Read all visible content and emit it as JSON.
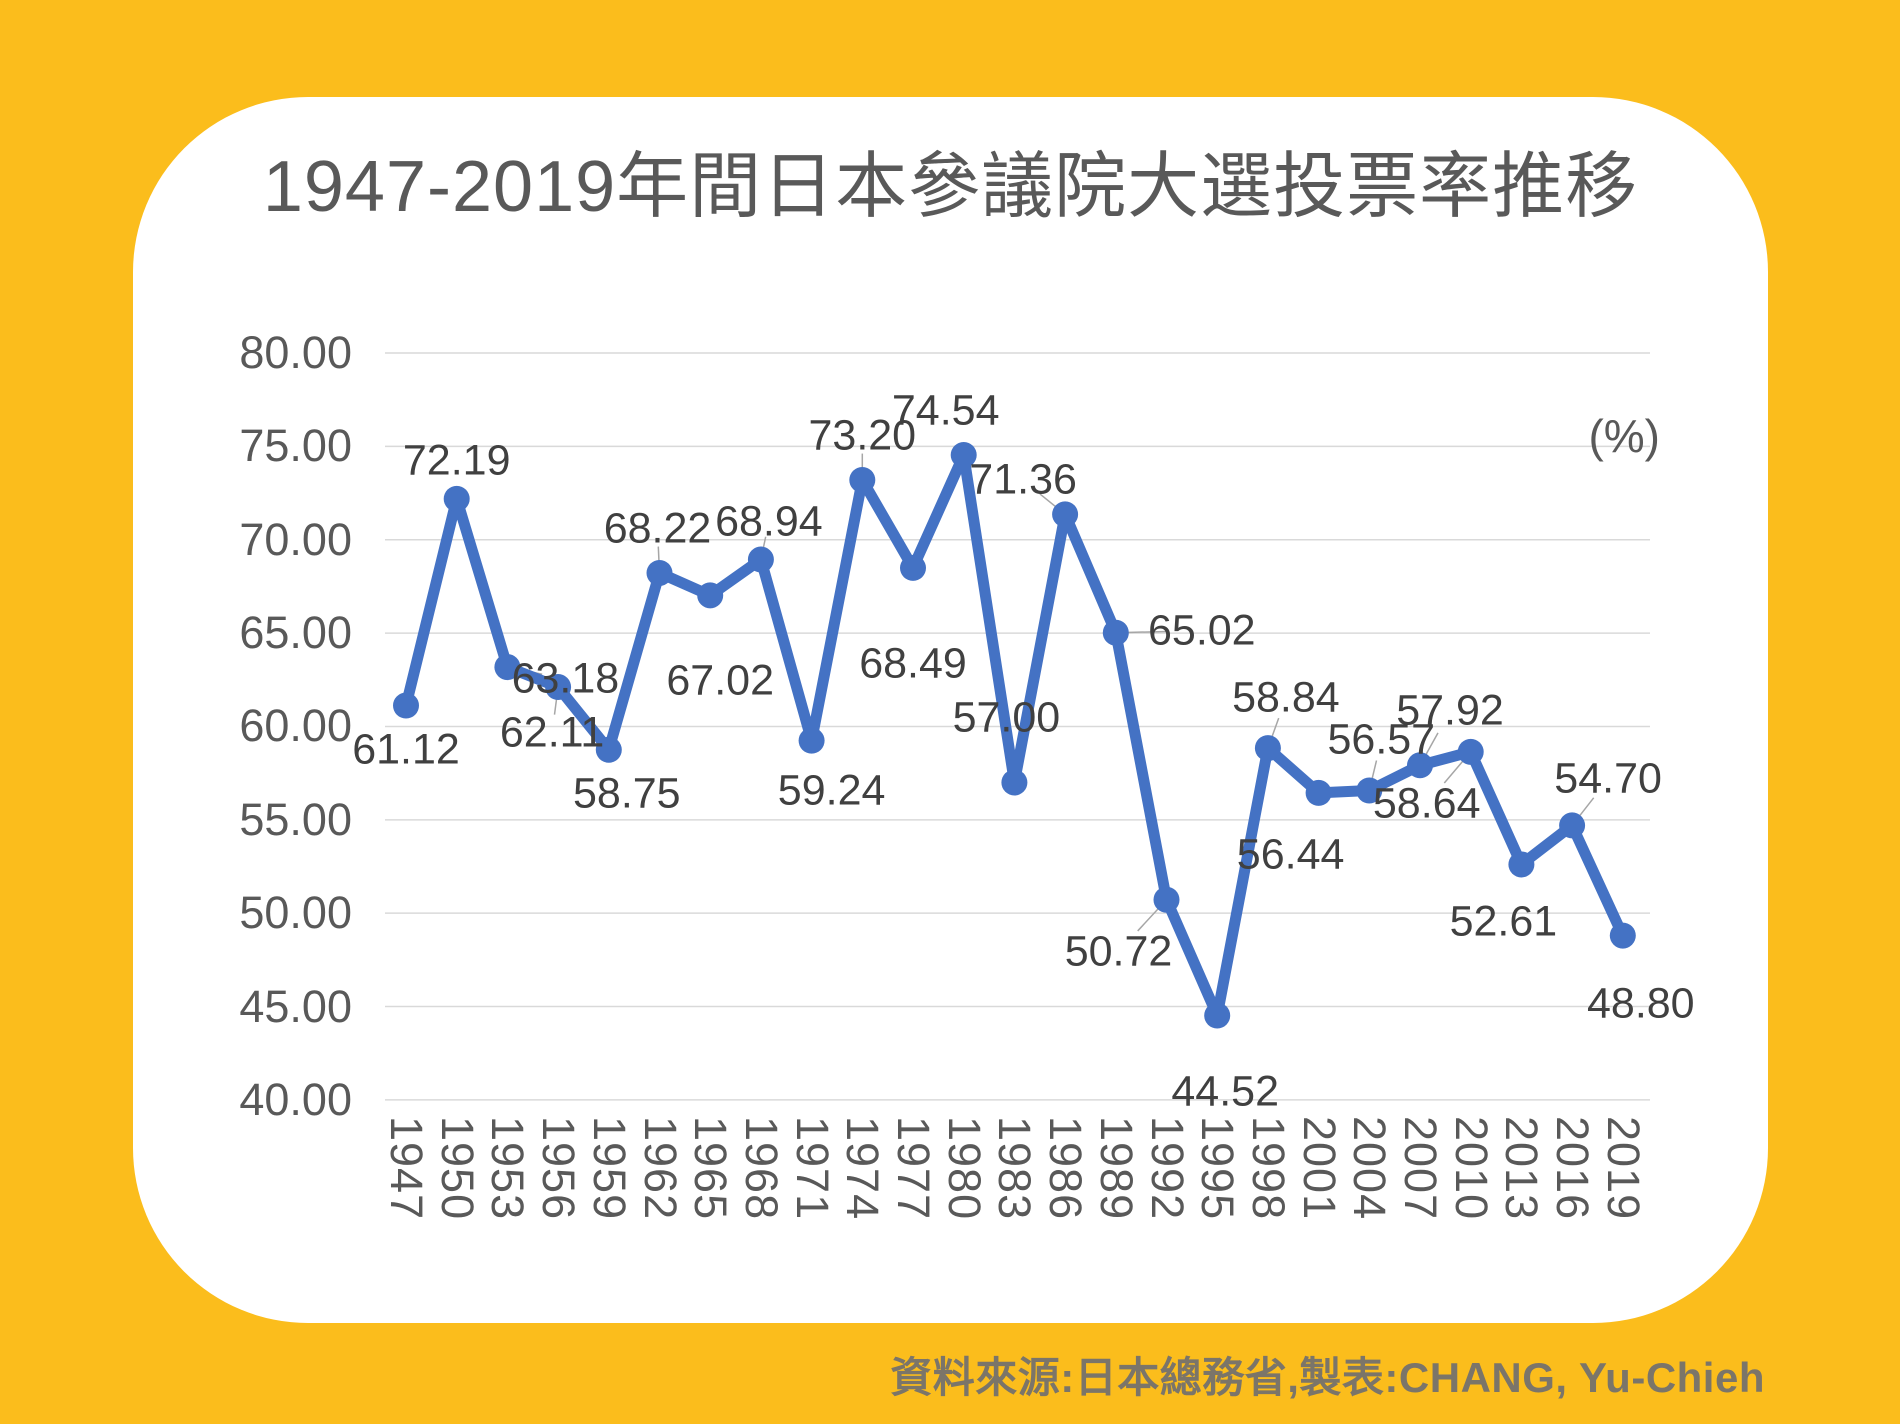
{
  "title": "1947-2019年間日本參議院大選投票率推移",
  "unit_label": "(%)",
  "source_note": "資料來源:日本總務省,製表:CHANG, Yu-Chieh",
  "colors": {
    "background": "#FBBD1C",
    "card": "#FFFFFF",
    "line": "#4472C4",
    "marker": "#4472C4",
    "grid": "#D9D9D9",
    "leader": "#A6A6A6",
    "axis_text": "#595959",
    "label_text": "#404040",
    "source_text": "#7B7569"
  },
  "chart_data": {
    "type": "line",
    "series_name": "投票率",
    "x": [
      1947,
      1950,
      1953,
      1956,
      1959,
      1962,
      1965,
      1968,
      1971,
      1974,
      1977,
      1980,
      1983,
      1986,
      1989,
      1992,
      1995,
      1998,
      2001,
      2004,
      2007,
      2010,
      2013,
      2016,
      2019
    ],
    "values": [
      61.12,
      72.19,
      63.18,
      62.11,
      58.75,
      68.22,
      67.02,
      68.94,
      59.24,
      73.2,
      68.49,
      74.54,
      57.0,
      71.36,
      65.02,
      50.72,
      44.52,
      58.84,
      56.44,
      56.57,
      57.92,
      58.64,
      52.61,
      54.7,
      48.8
    ],
    "value_labels": [
      "61.12",
      "72.19",
      "63.18",
      "62.11",
      "58.75",
      "68.22",
      "67.02",
      "68.94",
      "59.24",
      "73.20",
      "68.49",
      "74.54",
      "57.00",
      "71.36",
      "65.02",
      "50.72",
      "44.52",
      "58.84",
      "56.44",
      "56.57",
      "57.92",
      "58.64",
      "52.61",
      "54.70",
      "48.80"
    ],
    "yticks": [
      "80.00",
      "75.00",
      "70.00",
      "65.00",
      "60.00",
      "55.00",
      "50.00",
      "45.00",
      "40.00"
    ],
    "ylim": [
      40,
      80
    ],
    "ytick_step": 5,
    "grid": true,
    "legend": "none",
    "xlabel": "",
    "ylabel": "(%)",
    "label_placements": [
      [
        0,
        44,
        0
      ],
      [
        0,
        -38,
        0
      ],
      [
        58,
        12,
        1
      ],
      [
        -6,
        46,
        1
      ],
      [
        18,
        44,
        0
      ],
      [
        -2,
        -44,
        1
      ],
      [
        10,
        86,
        0
      ],
      [
        8,
        -38,
        1
      ],
      [
        20,
        50,
        0
      ],
      [
        0,
        -44,
        1
      ],
      [
        0,
        96,
        0
      ],
      [
        -18,
        -44,
        0
      ],
      [
        -8,
        -64,
        0
      ],
      [
        -42,
        -34,
        1
      ],
      [
        86,
        -2,
        1
      ],
      [
        -48,
        52,
        1
      ],
      [
        8,
        76,
        0
      ],
      [
        18,
        -50,
        1
      ],
      [
        -28,
        62,
        0
      ],
      [
        12,
        -50,
        1
      ],
      [
        30,
        -54,
        1
      ],
      [
        -44,
        52,
        1
      ],
      [
        -18,
        58,
        0
      ],
      [
        36,
        -46,
        1
      ],
      [
        18,
        68,
        0
      ]
    ]
  }
}
